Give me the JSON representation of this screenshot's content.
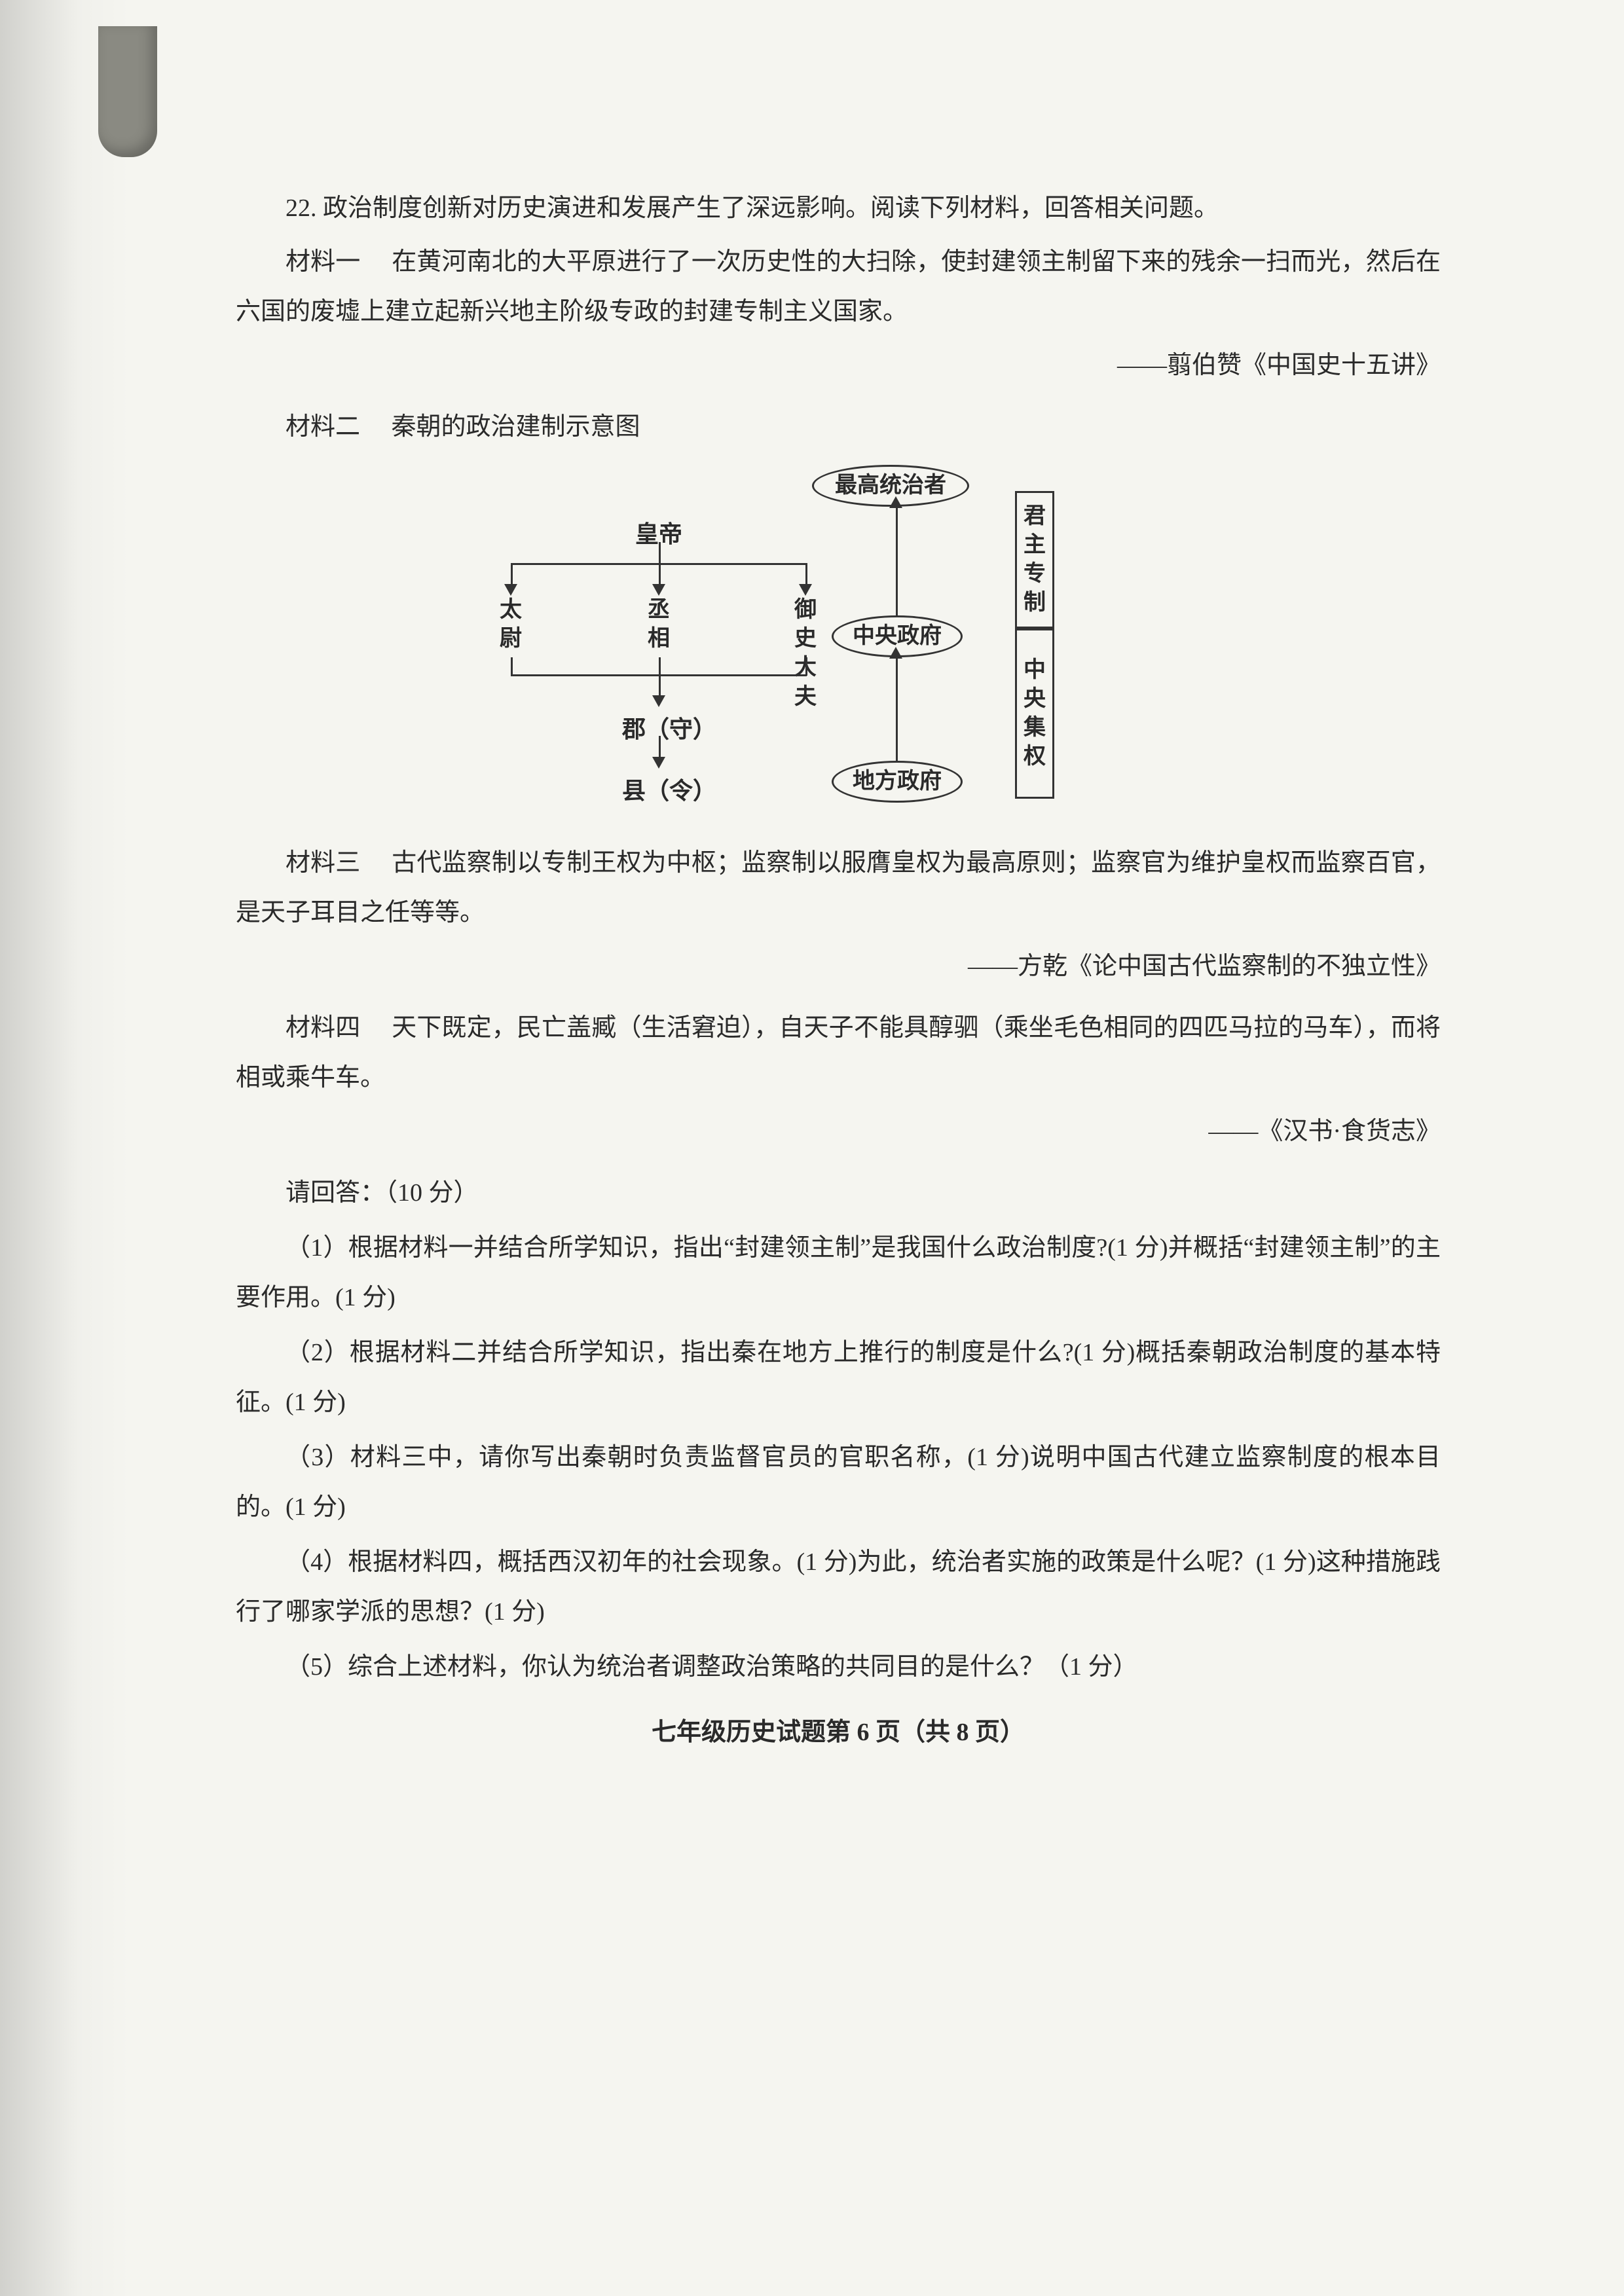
{
  "question": {
    "number": "22.",
    "stem": "政治制度创新对历史演进和发展产生了深远影响。阅读下列材料，回答相关问题。"
  },
  "material1": {
    "label": "材料一",
    "text": "在黄河南北的大平原进行了一次历史性的大扫除，使封建领主制留下来的残余一扫而光，然后在六国的废墟上建立起新兴地主阶级专政的封建专制主义国家。",
    "source": "——翦伯赞《中国史十五讲》"
  },
  "material2": {
    "label": "材料二",
    "title": "秦朝的政治建制示意图"
  },
  "diagram": {
    "top_ruler": "最高统治者",
    "emperor": "皇帝",
    "left_officials": [
      "太尉",
      "丞相",
      "御史大夫"
    ],
    "central_gov": "中央政府",
    "jun": "郡（守）",
    "xian": "县（令）",
    "local_gov": "地方政府",
    "side_top": "君主专制",
    "side_bottom": "中央集权",
    "colors": {
      "stroke": "#333333",
      "bg": "#f5f5f0"
    }
  },
  "material3": {
    "label": "材料三",
    "text": "古代监察制以专制王权为中枢；监察制以服膺皇权为最高原则；监察官为维护皇权而监察百官，是天子耳目之任等等。",
    "source": "——方乾《论中国古代监察制的不独立性》"
  },
  "material4": {
    "label": "材料四",
    "text": "天下既定，民亡盖臧（生活窘迫），自天子不能具醇驷（乘坐毛色相同的四匹马拉的马车），而将相或乘牛车。",
    "source": "——《汉书·食货志》"
  },
  "answer_intro": "请回答：（10 分）",
  "questions": {
    "q1": "（1）根据材料一并结合所学知识，指出“封建领主制”是我国什么政治制度?(1 分)并概括“封建领主制”的主要作用。(1 分)",
    "q2": "（2）根据材料二并结合所学知识，指出秦在地方上推行的制度是什么?(1 分)概括秦朝政治制度的基本特征。(1 分)",
    "q3": "（3）材料三中，请你写出秦朝时负责监督官员的官职名称，(1 分)说明中国古代建立监察制度的根本目的。(1 分)",
    "q4": "（4）根据材料四，概括西汉初年的社会现象。(1 分)为此，统治者实施的政策是什么呢？(1 分)这种措施践行了哪家学派的思想？(1 分)",
    "q5": "（5）综合上述材料，你认为统治者调整政治策略的共同目的是什么？（1 分）"
  },
  "footer": "七年级历史试题第 6 页（共 8 页）"
}
